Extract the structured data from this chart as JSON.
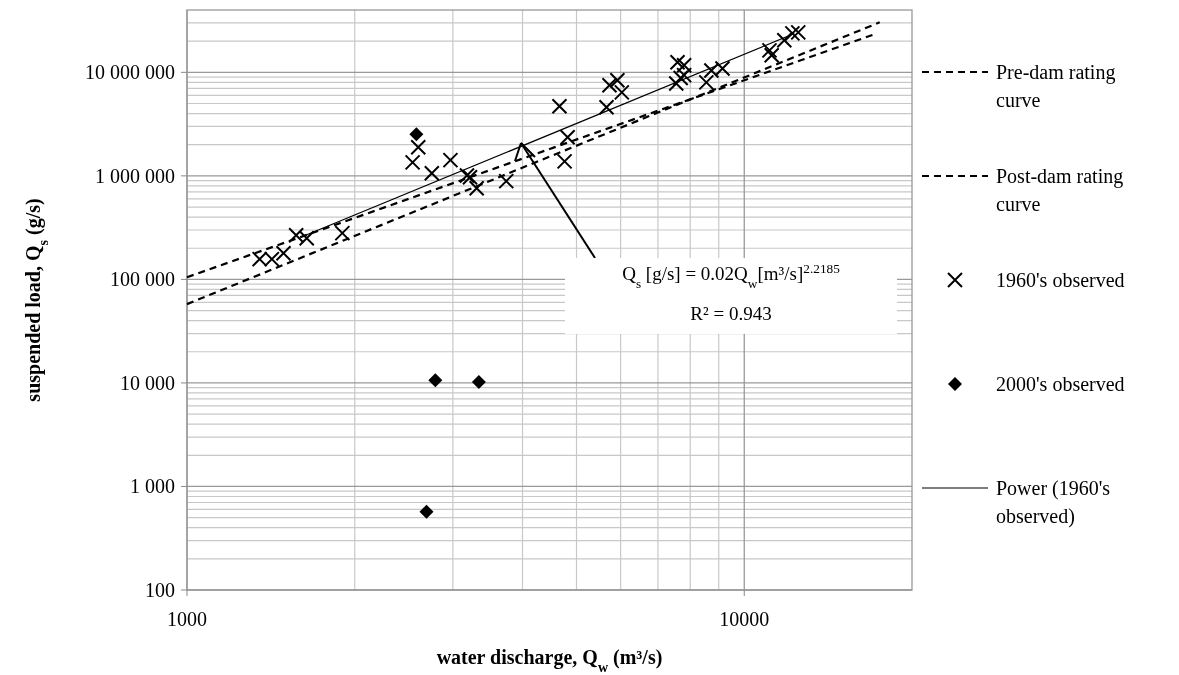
{
  "chart_data": {
    "type": "scatter",
    "xlabel": "water discharge, Q$_{w}$ (m³/s)",
    "ylabel": "suspended load, Q$_{s}$  (g/s)",
    "log": "xy",
    "grid": true,
    "legend": "right",
    "xlim": [
      1000,
      20000
    ],
    "xticks": [
      1000,
      10000
    ],
    "ylim": [
      100,
      40000000
    ],
    "yticks": [
      100,
      {
        "value": 1000,
        "label": "1 000"
      },
      {
        "value": 10000,
        "label": "10 000"
      },
      {
        "value": 100000,
        "label": "100 000"
      },
      {
        "value": 1000000,
        "label": "1 000 000"
      },
      {
        "value": 10000000,
        "label": "10 000 000"
      }
    ],
    "series": [
      {
        "name": "Pre-dam rating curve",
        "type": "line",
        "color": "#000000",
        "line_style": "dashed",
        "x": [
          1000,
          17500
        ],
        "values": [
          57700,
          30400000
        ]
      },
      {
        "name": "Post-dam rating curve",
        "type": "line",
        "color": "#000000",
        "line_style": "dashed",
        "x": [
          1000,
          17300
        ],
        "values": [
          105000,
          23800000
        ]
      },
      {
        "name": "1960's observed",
        "color": "#000000",
        "marker": "cross",
        "x": [
          1350,
          1420,
          1490,
          1570,
          1640,
          1900,
          2600,
          2540,
          2750,
          2970,
          3180,
          3220,
          3310,
          3740,
          4660,
          4820,
          4760,
          5660,
          5730,
          5920,
          6030,
          7590,
          7800,
          7550,
          7800,
          7690,
          8550,
          8730,
          9140,
          11100,
          11200,
          12200,
          12500,
          11800
        ],
        "values": [
          157000,
          157000,
          179000,
          267000,
          250000,
          280000,
          1890000,
          1350000,
          1060000,
          1420000,
          1010000,
          970000,
          760000,
          890000,
          4700000,
          2360000,
          1380000,
          4600000,
          7500000,
          8400000,
          6400000,
          12500000,
          11700000,
          7800000,
          9400000,
          8800000,
          8000000,
          10400000,
          10900000,
          16300000,
          14600000,
          23800000,
          24300000,
          20400000
        ]
      },
      {
        "name": "2000's observed",
        "color": "#000000",
        "marker": "diamond",
        "x": [
          2580,
          2790,
          3340,
          2690
        ],
        "values": [
          2520000,
          10600,
          10200,
          570
        ]
      },
      {
        "name": "Power (1960's observed)",
        "type": "line",
        "color": "#000000",
        "line_style": "solid",
        "x": [
          1600,
          12300
        ],
        "values": [
          255000,
          23700000
        ]
      }
    ],
    "annotations": [
      "Q$_{s}$ [g/s] = 0.02Q$_{w}$[m³/s]$^{2.2185}$",
      "R² = 0.943"
    ]
  }
}
